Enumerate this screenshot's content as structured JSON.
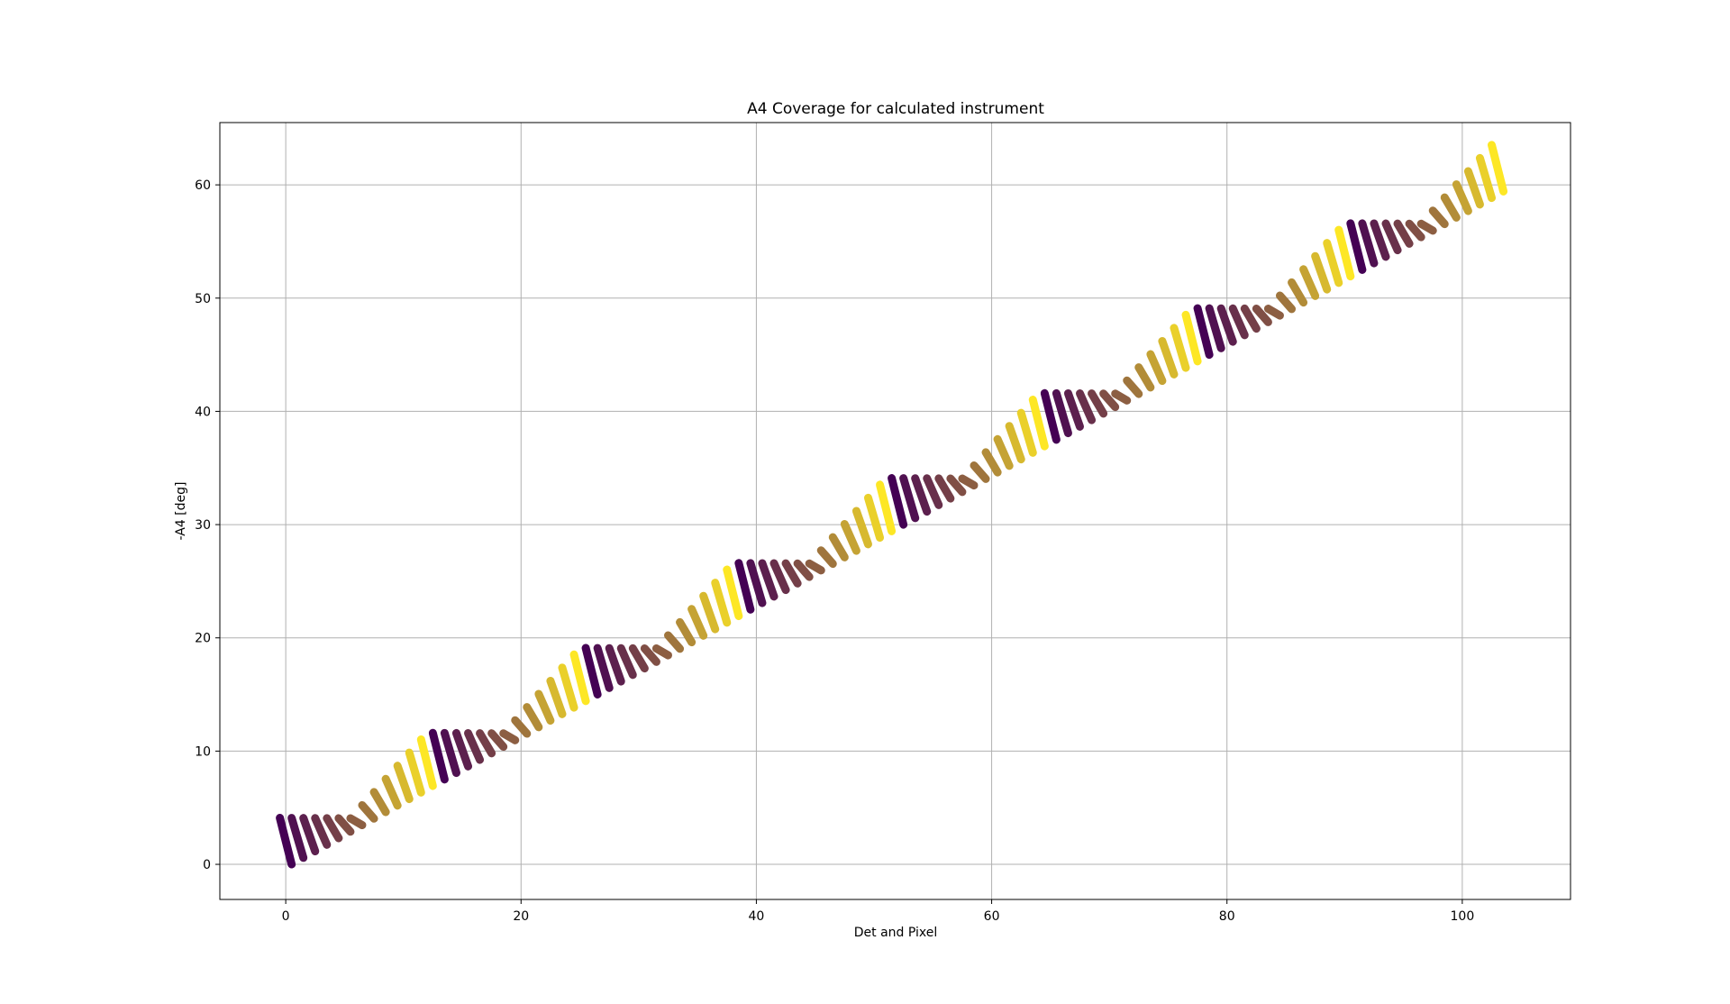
{
  "chart_data": {
    "type": "scatter",
    "title": "A4 Coverage for calculated instrument",
    "xlabel": "Det and Pixel",
    "ylabel": "-A4 [deg]",
    "xlim": [
      -5.6,
      109.2
    ],
    "ylim": [
      -3.1,
      65.5
    ],
    "xticks": [
      0,
      20,
      40,
      60,
      80,
      100
    ],
    "yticks": [
      0,
      10,
      20,
      30,
      40,
      50,
      60
    ],
    "grid": true,
    "colormap": [
      "#440154",
      "#8c5e42",
      "#fde725"
    ],
    "marker_color_rule": "position within each detector group (dark purple to yellow)",
    "series": [
      {
        "detectors": 8,
        "pixels_per_detector": 13,
        "segments_per_pixel": 12,
        "x_range_per_pixel": [
          -0.5,
          0.5
        ],
        "points_description": "each segment is a short tilted stroke from (x-0.5, y+span) to (x+0.5, y)",
        "group_start_values": [
          {
            "x": 0,
            "y_top": 3.5,
            "y_bottom": 0.0
          },
          {
            "x": 13,
            "y_top": 11.0,
            "y_bottom": 7.5
          },
          {
            "x": 26,
            "y_top": 18.5,
            "y_bottom": 15.0
          },
          {
            "x": 39,
            "y_top": 26.0,
            "y_bottom": 22.5
          },
          {
            "x": 52,
            "y_top": 33.5,
            "y_bottom": 30.0
          },
          {
            "x": 65,
            "y_top": 41.0,
            "y_bottom": 37.5
          },
          {
            "x": 78,
            "y_top": 48.5,
            "y_bottom": 45.0
          },
          {
            "x": 91,
            "y_top": 56.0,
            "y_bottom": 52.5
          }
        ],
        "last_point": {
          "x": 103,
          "y": 62.2
        }
      }
    ]
  }
}
